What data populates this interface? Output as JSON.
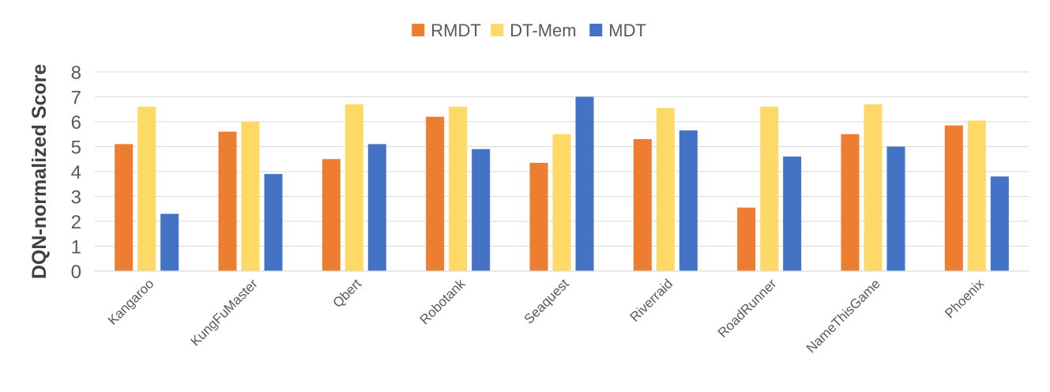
{
  "chart_data": {
    "type": "bar",
    "title": "",
    "xlabel": "",
    "ylabel": "DQN-normalized Score",
    "ylim": [
      0,
      8
    ],
    "yticks": [
      0,
      1,
      2,
      3,
      4,
      5,
      6,
      7,
      8
    ],
    "grid": true,
    "legend_position": "top-center",
    "categories": [
      "Kangaroo",
      "KungFuMaster",
      "Qbert",
      "Robotank",
      "Seaquest",
      "Riverraid",
      "RoadRunner",
      "NameThisGame",
      "Phoenix"
    ],
    "series": [
      {
        "name": "RMDT",
        "color": "#ED7D31",
        "values": [
          5.1,
          5.6,
          4.5,
          6.2,
          4.35,
          5.3,
          2.55,
          5.5,
          5.85
        ]
      },
      {
        "name": "DT-Mem",
        "color": "#FFD966",
        "values": [
          6.6,
          6.0,
          6.7,
          6.6,
          5.5,
          6.55,
          6.6,
          6.7,
          6.05
        ]
      },
      {
        "name": "MDT",
        "color": "#4472C4",
        "values": [
          2.3,
          3.9,
          5.1,
          4.9,
          7.0,
          5.65,
          4.6,
          5.0,
          3.8
        ]
      }
    ]
  }
}
